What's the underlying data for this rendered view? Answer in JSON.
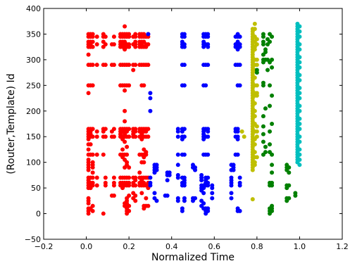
{
  "chart_data": {
    "type": "scatter",
    "xlabel": "Normalized Time",
    "ylabel": "(Router,Template) Id",
    "xlim": [
      -0.2,
      1.2
    ],
    "ylim": [
      -50,
      400
    ],
    "xticks": [
      "−0.2",
      "0.0",
      "0.2",
      "0.4",
      "0.6",
      "0.8",
      "1.0",
      "1.2"
    ],
    "yticks": [
      "−50",
      "0",
      "50",
      "100",
      "150",
      "200",
      "250",
      "300",
      "350",
      "400"
    ],
    "xtick_values": [
      -0.2,
      0.0,
      0.2,
      0.4,
      0.6,
      0.8,
      1.0,
      1.2
    ],
    "ytick_values": [
      -50,
      0,
      50,
      100,
      150,
      200,
      250,
      300,
      350,
      400
    ],
    "grid": false,
    "series": [
      {
        "color": "#ff0000",
        "clusters": [
          {
            "x": 0.01,
            "y": [
              0,
              5,
              10,
              20,
              25,
              30,
              50,
              55,
              60,
              65,
              70,
              85,
              90,
              95,
              100,
              105,
              115,
              125,
              135,
              145,
              150,
              155,
              160,
              165,
              235,
              250,
              290,
              310,
              325,
              330,
              335,
              345,
              350
            ]
          },
          {
            "x": 0.02,
            "y": [
              10,
              50,
              55,
              60,
              70,
              115,
              135,
              150,
              155,
              160,
              165,
              250,
              290,
              325,
              330,
              335,
              345,
              350
            ]
          },
          {
            "x": 0.03,
            "y": [
              5,
              15,
              55,
              60,
              70,
              80,
              90,
              95,
              100,
              115,
              150,
              165,
              250,
              290,
              325,
              335,
              345,
              350
            ]
          },
          {
            "x": 0.05,
            "y": [
              55,
              70,
              115,
              150,
              160,
              290,
              330,
              345
            ]
          },
          {
            "x": 0.08,
            "y": [
              0,
              115,
              150,
              160,
              165,
              290,
              325,
              335,
              345,
              350
            ]
          },
          {
            "x": 0.09,
            "y": [
              55,
              60,
              70,
              150,
              165,
              290,
              330,
              345
            ]
          },
          {
            "x": 0.12,
            "y": [
              35,
              150,
              160,
              290,
              330
            ]
          },
          {
            "x": 0.13,
            "y": [
              35,
              55,
              60,
              70,
              150,
              165,
              290,
              330,
              345
            ]
          },
          {
            "x": 0.16,
            "y": [
              55,
              60,
              70,
              115,
              150,
              155,
              160,
              165,
              250,
              290,
              325,
              330,
              335,
              345,
              350
            ]
          },
          {
            "x": 0.17,
            "y": [
              50,
              55,
              60,
              70,
              110,
              115,
              125,
              145,
              150,
              160,
              165,
              250,
              290,
              325,
              330,
              335,
              345,
              350
            ]
          },
          {
            "x": 0.18,
            "y": [
              15,
              20,
              55,
              60,
              70,
              90,
              105,
              115,
              140,
              150,
              155,
              160,
              165,
              180,
              200,
              240,
              250,
              290,
              320,
              325,
              330,
              335,
              345,
              350,
              365
            ]
          },
          {
            "x": 0.19,
            "y": [
              0,
              5,
              10,
              15,
              20,
              25,
              30,
              55,
              60,
              70,
              95,
              100,
              115,
              130,
              150,
              160,
              165,
              250,
              290,
              325,
              330,
              345,
              350
            ]
          },
          {
            "x": 0.2,
            "y": [
              5,
              15,
              35,
              55,
              60,
              70,
              90,
              150,
              165,
              250,
              290,
              325,
              330,
              345,
              350
            ]
          },
          {
            "x": 0.22,
            "y": [
              30,
              40,
              55,
              60,
              70,
              150,
              155,
              160,
              165,
              290,
              280,
              330,
              345
            ]
          },
          {
            "x": 0.23,
            "y": [
              25,
              35,
              55,
              65,
              70,
              150,
              160,
              165,
              290,
              325,
              330,
              335,
              345,
              350
            ]
          },
          {
            "x": 0.25,
            "y": [
              55,
              60,
              70,
              80,
              115,
              150,
              160,
              165,
              290,
              325,
              330,
              335,
              345,
              350
            ]
          },
          {
            "x": 0.26,
            "y": [
              40,
              55,
              60,
              65,
              70,
              100,
              115,
              145,
              150,
              155,
              160,
              165,
              250,
              290,
              325,
              330,
              335,
              345,
              350
            ]
          },
          {
            "x": 0.27,
            "y": [
              10,
              15,
              55,
              60,
              70,
              100,
              110,
              115,
              125,
              150,
              160,
              165,
              250,
              290,
              325,
              335,
              345,
              350
            ]
          },
          {
            "x": 0.28,
            "y": [
              15,
              30,
              55,
              70,
              115,
              120,
              150,
              160,
              165,
              290,
              325,
              330,
              345
            ]
          },
          {
            "x": 0.29,
            "y": [
              15,
              50,
              55,
              60,
              70,
              150,
              165,
              290,
              330,
              345,
              350
            ]
          }
        ]
      },
      {
        "color": "#0000ff",
        "clusters": [
          {
            "x": 0.29,
            "y": [
              350
            ]
          },
          {
            "x": 0.3,
            "y": [
              200,
              225,
              235,
              55,
              60,
              70
            ]
          },
          {
            "x": 0.32,
            "y": [
              30,
              40,
              80,
              85,
              90,
              95
            ]
          },
          {
            "x": 0.33,
            "y": [
              25,
              85,
              90,
              95
            ]
          },
          {
            "x": 0.37,
            "y": [
              35
            ]
          },
          {
            "x": 0.38,
            "y": [
              35,
              65,
              75,
              80
            ]
          },
          {
            "x": 0.39,
            "y": [
              75,
              80
            ]
          },
          {
            "x": 0.43,
            "y": [
              25,
              30,
              70,
              75,
              95,
              115,
              150,
              160,
              165
            ]
          },
          {
            "x": 0.45,
            "y": [
              5,
              10,
              55,
              60,
              70,
              115,
              145,
              150,
              160,
              165,
              250,
              290,
              325,
              330,
              335,
              345,
              350
            ]
          },
          {
            "x": 0.46,
            "y": [
              25,
              30,
              55,
              60,
              65,
              70,
              115,
              150,
              165,
              250,
              290,
              325,
              330,
              345,
              350
            ]
          },
          {
            "x": 0.5,
            "y": [
              25,
              30,
              90,
              95
            ]
          },
          {
            "x": 0.51,
            "y": [
              30,
              85,
              90
            ]
          },
          {
            "x": 0.54,
            "y": [
              15,
              25,
              45,
              50,
              55,
              65,
              70,
              75
            ]
          },
          {
            "x": 0.55,
            "y": [
              10,
              20,
              40,
              50,
              55,
              115,
              145,
              150,
              155,
              160,
              165,
              250,
              290,
              325,
              330,
              335,
              345,
              350
            ]
          },
          {
            "x": 0.56,
            "y": [
              0,
              5,
              10,
              55,
              60,
              65,
              70,
              115,
              150,
              165,
              250,
              290,
              330,
              345,
              350
            ]
          },
          {
            "x": 0.57,
            "y": [
              5,
              10,
              55,
              60,
              70,
              115,
              150,
              160,
              165,
              290,
              325,
              330,
              345,
              350
            ]
          },
          {
            "x": 0.59,
            "y": [
              30,
              40,
              50,
              55
            ]
          },
          {
            "x": 0.68,
            "y": [
              30,
              40,
              55,
              60,
              65,
              70,
              85,
              95
            ]
          },
          {
            "x": 0.69,
            "y": [
              85,
              90,
              95
            ]
          },
          {
            "x": 0.7,
            "y": [
              115,
              150,
              160,
              165,
              290,
              325,
              330,
              345
            ]
          },
          {
            "x": 0.71,
            "y": [
              5,
              10,
              115,
              145,
              150,
              160,
              165,
              250,
              290,
              320,
              325,
              330,
              335,
              345,
              350
            ]
          },
          {
            "x": 0.72,
            "y": [
              5,
              55,
              60,
              70,
              250,
              290,
              325,
              330,
              345
            ]
          }
        ]
      },
      {
        "color": "#bfbf00",
        "clusters": [
          {
            "x": 0.73,
            "y": [
              160
            ]
          },
          {
            "x": 0.74,
            "y": [
              150
            ]
          },
          {
            "x": 0.78,
            "y": [
              28,
              85,
              90,
              95,
              100,
              105,
              110,
              115,
              120,
              125,
              130,
              135,
              140,
              145,
              150,
              155,
              160,
              165,
              170,
              175,
              180,
              185,
              190,
              195,
              200,
              205,
              210,
              215,
              220,
              225,
              230,
              235,
              240,
              245,
              250,
              255,
              260,
              265,
              270,
              275,
              280,
              285,
              290,
              295,
              300,
              305,
              310,
              315,
              320,
              325,
              330,
              335,
              340,
              345,
              350,
              355,
              360
            ]
          },
          {
            "x": 0.79,
            "y": [
              95,
              100,
              110,
              120,
              135,
              145,
              160,
              175,
              190,
              200,
              215,
              230,
              235,
              250,
              265,
              280,
              290,
              300,
              320,
              325,
              335,
              345,
              360,
              370
            ]
          },
          {
            "x": 0.8,
            "y": [
              110,
              150,
              160,
              170,
              230,
              235,
              250,
              290,
              300,
              330,
              340
            ]
          }
        ]
      },
      {
        "color": "#008000",
        "clusters": [
          {
            "x": 0.8,
            "y": [
              280,
              275
            ]
          },
          {
            "x": 0.83,
            "y": [
              345,
              350,
              335,
              330,
              300,
              295,
              310,
              255,
              250,
              190,
              170,
              155,
              140,
              115
            ]
          },
          {
            "x": 0.84,
            "y": [
              320,
              315,
              300,
              205,
              120,
              130
            ]
          },
          {
            "x": 0.85,
            "y": [
              340,
              330,
              300,
              280
            ]
          },
          {
            "x": 0.86,
            "y": [
              350,
              335,
              295,
              250,
              210,
              160,
              135,
              120,
              60,
              55,
              10,
              5,
              0
            ]
          },
          {
            "x": 0.87,
            "y": [
              345,
              300,
              285,
              230,
              175,
              115,
              95,
              80,
              60,
              55,
              15,
              10,
              5
            ]
          },
          {
            "x": 0.94,
            "y": [
              95,
              90,
              85,
              55,
              50,
              30,
              25
            ]
          },
          {
            "x": 0.95,
            "y": [
              90,
              80,
              55,
              30
            ]
          },
          {
            "x": 0.98,
            "y": [
              35,
              40
            ]
          }
        ]
      },
      {
        "color": "#00bfbf",
        "clusters": [
          {
            "x": 0.99,
            "y": [
              100,
              105,
              110,
              115,
              120,
              125,
              130,
              135,
              140,
              145,
              150,
              155,
              160,
              165,
              170,
              175,
              180,
              185,
              190,
              195,
              200,
              205,
              210,
              215,
              220,
              225,
              230,
              235,
              240,
              245,
              250,
              255,
              260,
              265,
              270,
              275,
              280,
              285,
              290,
              295,
              300,
              305,
              310,
              315,
              320,
              325,
              330,
              335,
              340,
              345,
              350,
              355,
              360,
              365,
              370
            ]
          },
          {
            "x": 1.0,
            "y": [
              95,
              105,
              115,
              125,
              140,
              150,
              165,
              175,
              185,
              200,
              210,
              225,
              235,
              245,
              260,
              270,
              285,
              295,
              305,
              320,
              330,
              345,
              355,
              365
            ]
          }
        ]
      }
    ]
  }
}
